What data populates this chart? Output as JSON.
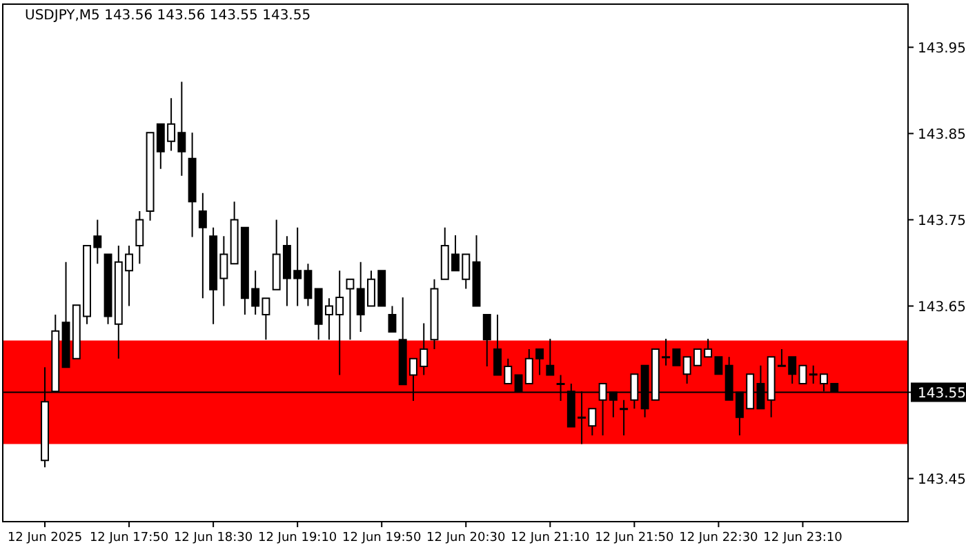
{
  "chart_data": {
    "type": "candlestick",
    "title": "USDJPY,M5  143.56 143.56 143.55 143.55",
    "x": [
      "2025-06-12T17:10",
      "2025-06-12T17:15",
      "2025-06-12T17:20",
      "2025-06-12T17:25",
      "2025-06-12T17:30",
      "2025-06-12T17:35",
      "2025-06-12T17:40",
      "2025-06-12T17:45",
      "2025-06-12T17:50",
      "2025-06-12T17:55",
      "2025-06-12T18:00",
      "2025-06-12T18:05",
      "2025-06-12T18:10",
      "2025-06-12T18:15",
      "2025-06-12T18:20",
      "2025-06-12T18:25",
      "2025-06-12T18:30",
      "2025-06-12T18:35",
      "2025-06-12T18:40",
      "2025-06-12T18:45",
      "2025-06-12T18:50",
      "2025-06-12T18:55",
      "2025-06-12T19:00",
      "2025-06-12T19:05",
      "2025-06-12T19:10",
      "2025-06-12T19:15",
      "2025-06-12T19:20",
      "2025-06-12T19:25",
      "2025-06-12T19:30",
      "2025-06-12T19:35",
      "2025-06-12T19:40",
      "2025-06-12T19:45",
      "2025-06-12T19:50",
      "2025-06-12T19:55",
      "2025-06-12T20:00",
      "2025-06-12T20:05",
      "2025-06-12T20:10",
      "2025-06-12T20:15",
      "2025-06-12T20:20",
      "2025-06-12T20:25",
      "2025-06-12T20:30",
      "2025-06-12T20:35",
      "2025-06-12T20:40",
      "2025-06-12T20:45",
      "2025-06-12T20:50",
      "2025-06-12T20:55",
      "2025-06-12T21:00",
      "2025-06-12T21:05",
      "2025-06-12T21:10",
      "2025-06-12T21:15",
      "2025-06-12T21:20",
      "2025-06-12T21:25",
      "2025-06-12T21:30",
      "2025-06-12T21:35",
      "2025-06-12T21:40",
      "2025-06-12T21:45",
      "2025-06-12T21:50",
      "2025-06-12T21:55",
      "2025-06-12T22:00",
      "2025-06-12T22:05",
      "2025-06-12T22:10",
      "2025-06-12T22:15",
      "2025-06-12T22:20",
      "2025-06-12T22:25",
      "2025-06-12T22:30",
      "2025-06-12T22:35",
      "2025-06-12T22:40",
      "2025-06-12T22:45",
      "2025-06-12T22:50",
      "2025-06-12T22:55",
      "2025-06-12T23:00",
      "2025-06-12T23:05",
      "2025-06-12T23:10",
      "2025-06-12T23:15",
      "2025-06-12T23:20",
      "2025-06-12T23:25"
    ],
    "xlim": [
      "2025-06-12T16:50",
      "2025-06-13T00:00"
    ],
    "xticks": [
      {
        "value": "2025-06-12T17:10",
        "label": "12 Jun 2025"
      },
      {
        "value": "2025-06-12T17:50",
        "label": "12 Jun 17:50"
      },
      {
        "value": "2025-06-12T18:30",
        "label": "12 Jun 18:30"
      },
      {
        "value": "2025-06-12T19:10",
        "label": "12 Jun 19:10"
      },
      {
        "value": "2025-06-12T19:50",
        "label": "12 Jun 19:50"
      },
      {
        "value": "2025-06-12T20:30",
        "label": "12 Jun 20:30"
      },
      {
        "value": "2025-06-12T21:10",
        "label": "12 Jun 21:10"
      },
      {
        "value": "2025-06-12T21:50",
        "label": "12 Jun 21:50"
      },
      {
        "value": "2025-06-12T22:30",
        "label": "12 Jun 22:30"
      },
      {
        "value": "2025-06-12T23:10",
        "label": "12 Jun 23:10"
      }
    ],
    "ohlc": [
      [
        143.471,
        143.579,
        143.463,
        143.539
      ],
      [
        143.551,
        143.64,
        143.551,
        143.621
      ],
      [
        143.631,
        143.701,
        143.579,
        143.579
      ],
      [
        143.589,
        143.651,
        143.589,
        143.651
      ],
      [
        143.638,
        143.72,
        143.629,
        143.72
      ],
      [
        143.731,
        143.75,
        143.699,
        143.718
      ],
      [
        143.71,
        143.71,
        143.629,
        143.638
      ],
      [
        143.629,
        143.72,
        143.589,
        143.701
      ],
      [
        143.691,
        143.72,
        143.65,
        143.71
      ],
      [
        143.72,
        143.76,
        143.699,
        143.75
      ],
      [
        143.76,
        143.851,
        143.749,
        143.851
      ],
      [
        143.861,
        143.861,
        143.809,
        143.829
      ],
      [
        143.841,
        143.891,
        143.83,
        143.861
      ],
      [
        143.851,
        143.91,
        143.801,
        143.829
      ],
      [
        143.821,
        143.851,
        143.73,
        143.771
      ],
      [
        143.76,
        143.781,
        143.659,
        143.741
      ],
      [
        143.731,
        143.741,
        143.629,
        143.669
      ],
      [
        143.682,
        143.731,
        143.65,
        143.71
      ],
      [
        143.699,
        143.771,
        143.699,
        143.75
      ],
      [
        143.741,
        143.741,
        143.64,
        143.659
      ],
      [
        143.67,
        143.691,
        143.64,
        143.65
      ],
      [
        143.64,
        143.659,
        143.611,
        143.659
      ],
      [
        143.669,
        143.75,
        143.669,
        143.71
      ],
      [
        143.72,
        143.731,
        143.65,
        143.682
      ],
      [
        143.691,
        143.741,
        143.65,
        143.682
      ],
      [
        143.691,
        143.699,
        143.65,
        143.659
      ],
      [
        143.67,
        143.67,
        143.611,
        143.629
      ],
      [
        143.64,
        143.659,
        143.611,
        143.65
      ],
      [
        143.64,
        143.691,
        143.57,
        143.66
      ],
      [
        143.67,
        143.681,
        143.611,
        143.681
      ],
      [
        143.67,
        143.701,
        143.62,
        143.64
      ],
      [
        143.65,
        143.691,
        143.65,
        143.681
      ],
      [
        143.691,
        143.691,
        143.65,
        143.65
      ],
      [
        143.64,
        143.65,
        143.62,
        143.62
      ],
      [
        143.611,
        143.66,
        143.559,
        143.559
      ],
      [
        143.57,
        143.589,
        143.54,
        143.589
      ],
      [
        143.58,
        143.63,
        143.57,
        143.6
      ],
      [
        143.611,
        143.681,
        143.6,
        143.67
      ],
      [
        143.681,
        143.741,
        143.681,
        143.72
      ],
      [
        143.71,
        143.732,
        143.691,
        143.691
      ],
      [
        143.681,
        143.71,
        143.67,
        143.71
      ],
      [
        143.701,
        143.732,
        143.65,
        143.65
      ],
      [
        143.64,
        143.64,
        143.58,
        143.611
      ],
      [
        143.6,
        143.64,
        143.57,
        143.57
      ],
      [
        143.56,
        143.589,
        143.56,
        143.58
      ],
      [
        143.57,
        143.57,
        143.551,
        143.551
      ],
      [
        143.56,
        143.6,
        143.56,
        143.589
      ],
      [
        143.6,
        143.6,
        143.57,
        143.589
      ],
      [
        143.581,
        143.612,
        143.57,
        143.57
      ],
      [
        143.56,
        143.57,
        143.54,
        143.56
      ],
      [
        143.551,
        143.56,
        143.51,
        143.51
      ],
      [
        143.521,
        143.551,
        143.49,
        143.521
      ],
      [
        143.511,
        143.531,
        143.5,
        143.531
      ],
      [
        143.541,
        143.56,
        143.5,
        143.56
      ],
      [
        143.55,
        143.55,
        143.521,
        143.541
      ],
      [
        143.531,
        143.541,
        143.5,
        143.531
      ],
      [
        143.541,
        143.571,
        143.531,
        143.571
      ],
      [
        143.581,
        143.581,
        143.521,
        143.531
      ],
      [
        143.541,
        143.6,
        143.541,
        143.6
      ],
      [
        143.591,
        143.612,
        143.581,
        143.591
      ],
      [
        143.6,
        143.6,
        143.581,
        143.581
      ],
      [
        143.571,
        143.591,
        143.56,
        143.591
      ],
      [
        143.581,
        143.6,
        143.581,
        143.6
      ],
      [
        143.591,
        143.612,
        143.591,
        143.6
      ],
      [
        143.591,
        143.591,
        143.571,
        143.571
      ],
      [
        143.581,
        143.591,
        143.541,
        143.541
      ],
      [
        143.55,
        143.55,
        143.5,
        143.521
      ],
      [
        143.531,
        143.571,
        143.531,
        143.571
      ],
      [
        143.56,
        143.581,
        143.531,
        143.531
      ],
      [
        143.541,
        143.591,
        143.521,
        143.591
      ],
      [
        143.581,
        143.6,
        143.581,
        143.581
      ],
      [
        143.591,
        143.591,
        143.56,
        143.571
      ],
      [
        143.56,
        143.581,
        143.56,
        143.581
      ],
      [
        143.571,
        143.581,
        143.56,
        143.571
      ],
      [
        143.56,
        143.571,
        143.551,
        143.571
      ],
      [
        143.56,
        143.56,
        143.551,
        143.551
      ]
    ],
    "ylim": [
      143.4,
      144.0
    ],
    "yticks": [
      143.45,
      143.55,
      143.65,
      143.75,
      143.85,
      143.95
    ],
    "ref_lines": [
      {
        "axis": "y",
        "value": 143.55,
        "label": "143.55",
        "color": "#000000"
      }
    ],
    "bands": [
      {
        "axis": "y",
        "from": 143.49,
        "to": 143.61,
        "color": "#ff0000"
      }
    ]
  }
}
